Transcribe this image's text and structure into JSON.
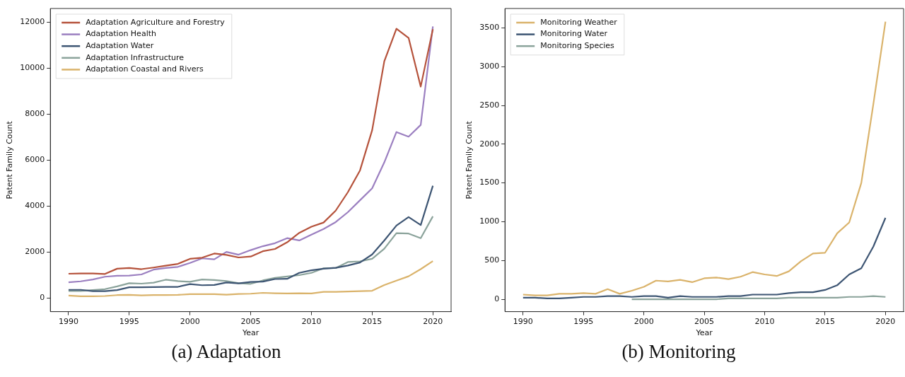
{
  "chart_data": [
    {
      "type": "line",
      "title": "(a) Adaptation",
      "xlabel": "Year",
      "ylabel": "Patent Family Count",
      "legend": "top left",
      "grid": false,
      "x": [
        1990,
        1991,
        1992,
        1993,
        1994,
        1995,
        1996,
        1997,
        1998,
        1999,
        2000,
        2001,
        2002,
        2003,
        2004,
        2005,
        2006,
        2007,
        2008,
        2009,
        2010,
        2011,
        2012,
        2013,
        2014,
        2015,
        2016,
        2017,
        2018,
        2019,
        2020
      ],
      "xlim": [
        1988.5,
        2021.5
      ],
      "xticks": [
        1990,
        1995,
        2000,
        2005,
        2010,
        2015,
        2020
      ],
      "ylim": [
        -600,
        12600
      ],
      "yticks": [
        0,
        2000,
        4000,
        6000,
        8000,
        10000,
        12000
      ],
      "series": [
        {
          "name": "Adaptation Agriculture and Forestry",
          "color": "#b5523b",
          "values": [
            1050,
            1060,
            1060,
            1040,
            1270,
            1300,
            1250,
            1320,
            1400,
            1480,
            1700,
            1750,
            1930,
            1870,
            1760,
            1800,
            2030,
            2130,
            2420,
            2830,
            3100,
            3280,
            3800,
            4600,
            5550,
            7300,
            10300,
            11720,
            11320,
            9200,
            11700
          ]
        },
        {
          "name": "Adaptation Health",
          "color": "#9b7fc0",
          "values": [
            680,
            720,
            800,
            920,
            960,
            970,
            1020,
            1230,
            1300,
            1350,
            1520,
            1720,
            1680,
            2000,
            1880,
            2080,
            2250,
            2380,
            2600,
            2500,
            2750,
            3000,
            3300,
            3730,
            4250,
            4770,
            5900,
            7220,
            7020,
            7530,
            11820
          ]
        },
        {
          "name": "Adaptation Water",
          "color": "#3d5573",
          "values": [
            350,
            350,
            290,
            290,
            340,
            460,
            460,
            470,
            480,
            480,
            600,
            550,
            560,
            670,
            630,
            690,
            710,
            820,
            830,
            1090,
            1200,
            1270,
            1310,
            1410,
            1540,
            1890,
            2500,
            3150,
            3520,
            3170,
            4880
          ]
        },
        {
          "name": "Adaptation Infrastructure",
          "color": "#8ba39b",
          "values": [
            300,
            300,
            340,
            380,
            500,
            640,
            620,
            660,
            790,
            730,
            700,
            800,
            780,
            730,
            640,
            610,
            760,
            870,
            930,
            990,
            1090,
            1290,
            1300,
            1560,
            1590,
            1700,
            2140,
            2820,
            2800,
            2600,
            3550
          ]
        },
        {
          "name": "Adaptation Coastal and Rivers",
          "color": "#dab36b",
          "values": [
            100,
            70,
            70,
            80,
            120,
            130,
            110,
            120,
            120,
            130,
            160,
            160,
            160,
            140,
            170,
            180,
            220,
            200,
            190,
            200,
            190,
            260,
            260,
            280,
            290,
            310,
            560,
            750,
            940,
            1250,
            1600
          ]
        }
      ]
    },
    {
      "type": "line",
      "title": "(b) Monitoring",
      "xlabel": "Year",
      "ylabel": "Patent Family Count",
      "legend": "top left",
      "grid": false,
      "x": [
        1990,
        1991,
        1992,
        1993,
        1994,
        1995,
        1996,
        1997,
        1998,
        1999,
        2000,
        2001,
        2002,
        2003,
        2004,
        2005,
        2006,
        2007,
        2008,
        2009,
        2010,
        2011,
        2012,
        2013,
        2014,
        2015,
        2016,
        2017,
        2018,
        2019,
        2020
      ],
      "xlim": [
        1988.5,
        2021.5
      ],
      "xticks": [
        1990,
        1995,
        2000,
        2005,
        2010,
        2015,
        2020
      ],
      "ylim": [
        -160,
        3750
      ],
      "yticks": [
        0,
        500,
        1000,
        1500,
        2000,
        2500,
        3000,
        3500
      ],
      "series": [
        {
          "name": "Monitoring Weather",
          "color": "#dab36b",
          "values": [
            60,
            50,
            50,
            70,
            70,
            80,
            70,
            130,
            70,
            110,
            160,
            240,
            230,
            250,
            220,
            270,
            280,
            260,
            290,
            350,
            320,
            300,
            360,
            490,
            590,
            600,
            850,
            990,
            1500,
            2520,
            3580
          ]
        },
        {
          "name": "Monitoring Water",
          "color": "#3d5573",
          "values": [
            20,
            20,
            10,
            10,
            20,
            30,
            30,
            40,
            40,
            30,
            40,
            40,
            20,
            40,
            30,
            30,
            30,
            40,
            40,
            60,
            60,
            60,
            80,
            90,
            90,
            120,
            180,
            320,
            400,
            680,
            1050
          ]
        },
        {
          "name": "Monitoring Species",
          "color": "#8ba39b",
          "values": [
            null,
            null,
            null,
            null,
            null,
            null,
            null,
            null,
            null,
            0,
            0,
            0,
            0,
            0,
            0,
            0,
            0,
            10,
            10,
            10,
            10,
            10,
            20,
            20,
            20,
            20,
            20,
            30,
            30,
            40,
            30
          ]
        }
      ]
    }
  ]
}
